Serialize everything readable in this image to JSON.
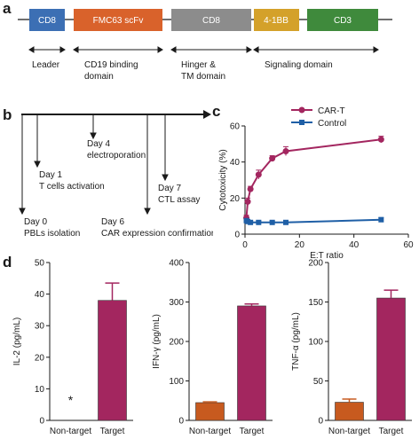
{
  "panels": {
    "a": "a",
    "b": "b",
    "c": "c",
    "d": "d"
  },
  "panel_a": {
    "segments": [
      {
        "label": "CD8",
        "color": "#3c6fb4"
      },
      {
        "label": "FMC63 scFv",
        "color": "#d9622b"
      },
      {
        "label": "CD8",
        "color": "#8c8c8c"
      },
      {
        "label": "4-1BB",
        "color": "#d4a12a"
      },
      {
        "label": "CD3",
        "color": "#3f8a3c"
      }
    ],
    "domains": [
      {
        "line1": "Leader",
        "line2": ""
      },
      {
        "line1": "CD19 binding",
        "line2": "domain"
      },
      {
        "line1": "Hinger &",
        "line2": "TM domain"
      },
      {
        "line1": "Signaling domain",
        "line2": ""
      }
    ]
  },
  "panel_b": {
    "events": [
      {
        "line1": "Day 0",
        "line2": "PBLs isolation"
      },
      {
        "line1": "Day 1",
        "line2": "T cells activation"
      },
      {
        "line1": "Day 4",
        "line2": "electroporation"
      },
      {
        "line1": "Day 6",
        "line2": "CAR expression confirmation"
      },
      {
        "line1": "Day 7",
        "line2": "CTL assay"
      }
    ]
  },
  "chart_data": [
    {
      "type": "line",
      "panel": "c",
      "xlabel": "E:T ratio",
      "ylabel": "Cytotoxicity (%)",
      "xlim": [
        0,
        60
      ],
      "ylim": [
        0,
        60
      ],
      "xticks": [
        0,
        20,
        40,
        60
      ],
      "yticks": [
        0,
        20,
        40,
        60
      ],
      "legend_position": "top-right",
      "series": [
        {
          "name": "CAR-T",
          "color": "#a3265f",
          "marker": "circle",
          "x": [
            0.5,
            1,
            2,
            5,
            10,
            15,
            50
          ],
          "y": [
            9,
            18,
            25,
            33,
            42,
            46,
            52.5
          ],
          "err": [
            1.5,
            2,
            1.5,
            2.5,
            1.5,
            2.5,
            1.8
          ]
        },
        {
          "name": "Control",
          "color": "#1f5fa6",
          "marker": "square",
          "x": [
            0.5,
            1,
            2,
            5,
            10,
            15,
            50
          ],
          "y": [
            7.5,
            7,
            6.5,
            6.5,
            6.5,
            6.5,
            8
          ],
          "err": [
            1,
            0.8,
            0.8,
            0.8,
            0.8,
            0.8,
            1.2
          ]
        }
      ]
    },
    {
      "type": "bar",
      "panel": "d",
      "categories": [
        "Non-target",
        "Target"
      ],
      "values": [
        0,
        38
      ],
      "errors": [
        0,
        5.5
      ],
      "colors": [
        "#c75a1f",
        "#a3265f"
      ],
      "ylabel": "IL-2 (pg/mL)",
      "ylim": [
        0,
        50
      ],
      "yticks": [
        0,
        10,
        20,
        30,
        40,
        50
      ],
      "annotation": "*"
    },
    {
      "type": "bar",
      "panel": "d",
      "categories": [
        "Non-target",
        "Target"
      ],
      "values": [
        45,
        290
      ],
      "errors": [
        2,
        5
      ],
      "colors": [
        "#c75a1f",
        "#a3265f"
      ],
      "ylabel": "IFN-γ (pg/mL)",
      "ylim": [
        0,
        400
      ],
      "yticks": [
        0,
        100,
        200,
        300,
        400
      ]
    },
    {
      "type": "bar",
      "panel": "d",
      "categories": [
        "Non-target",
        "Target"
      ],
      "values": [
        23,
        155
      ],
      "errors": [
        4,
        10
      ],
      "colors": [
        "#c75a1f",
        "#a3265f"
      ],
      "ylabel": "TNF-α (pg/mL)",
      "ylim": [
        0,
        200
      ],
      "yticks": [
        0,
        50,
        100,
        150,
        200
      ]
    }
  ]
}
